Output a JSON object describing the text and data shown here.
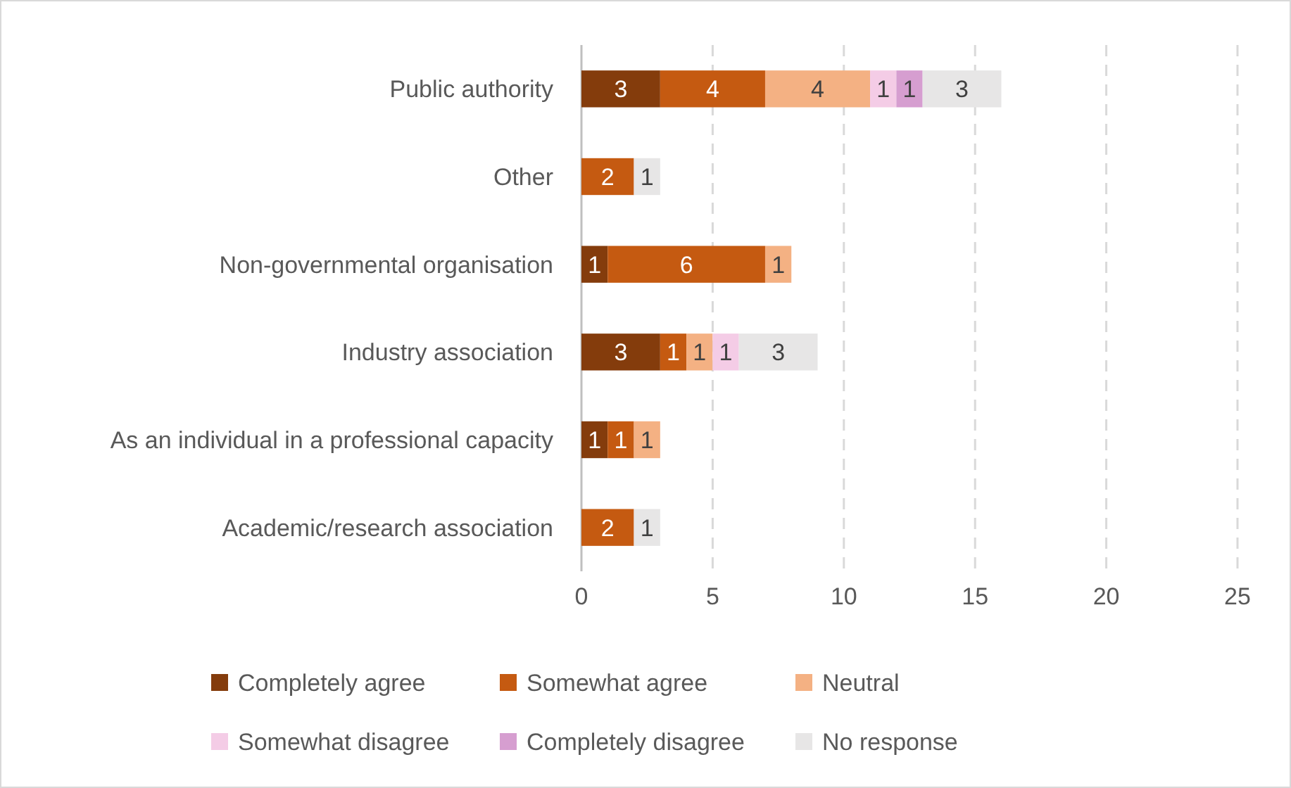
{
  "chart_data": {
    "type": "bar",
    "orientation": "horizontal",
    "stacked": true,
    "categories": [
      "Public authority",
      "Other",
      "Non-governmental organisation",
      "Industry association",
      "As an individual in a professional capacity",
      "Academic/research association"
    ],
    "series": [
      {
        "name": "Completely agree",
        "color": "#843c0c",
        "values": [
          3,
          null,
          1,
          3,
          1,
          null
        ]
      },
      {
        "name": "Somewhat agree",
        "color": "#c55a11",
        "values": [
          4,
          2,
          6,
          1,
          1,
          2
        ]
      },
      {
        "name": "Neutral",
        "color": "#f4b183",
        "values": [
          4,
          null,
          1,
          1,
          1,
          null
        ]
      },
      {
        "name": "Somewhat disagree",
        "color": "#f4cce6",
        "values": [
          1,
          null,
          null,
          1,
          null,
          null
        ]
      },
      {
        "name": "Completely disagree",
        "color": "#d69ed0",
        "values": [
          1,
          null,
          null,
          null,
          null,
          null
        ]
      },
      {
        "name": "No response",
        "color": "#e7e6e6",
        "values": [
          3,
          1,
          null,
          3,
          null,
          1
        ]
      }
    ],
    "xlim": [
      0,
      25
    ],
    "xticks": [
      0,
      5,
      10,
      15,
      20,
      25
    ],
    "grid": "x",
    "line_style": "dashed",
    "legend": "bottom",
    "data_labels": true
  }
}
